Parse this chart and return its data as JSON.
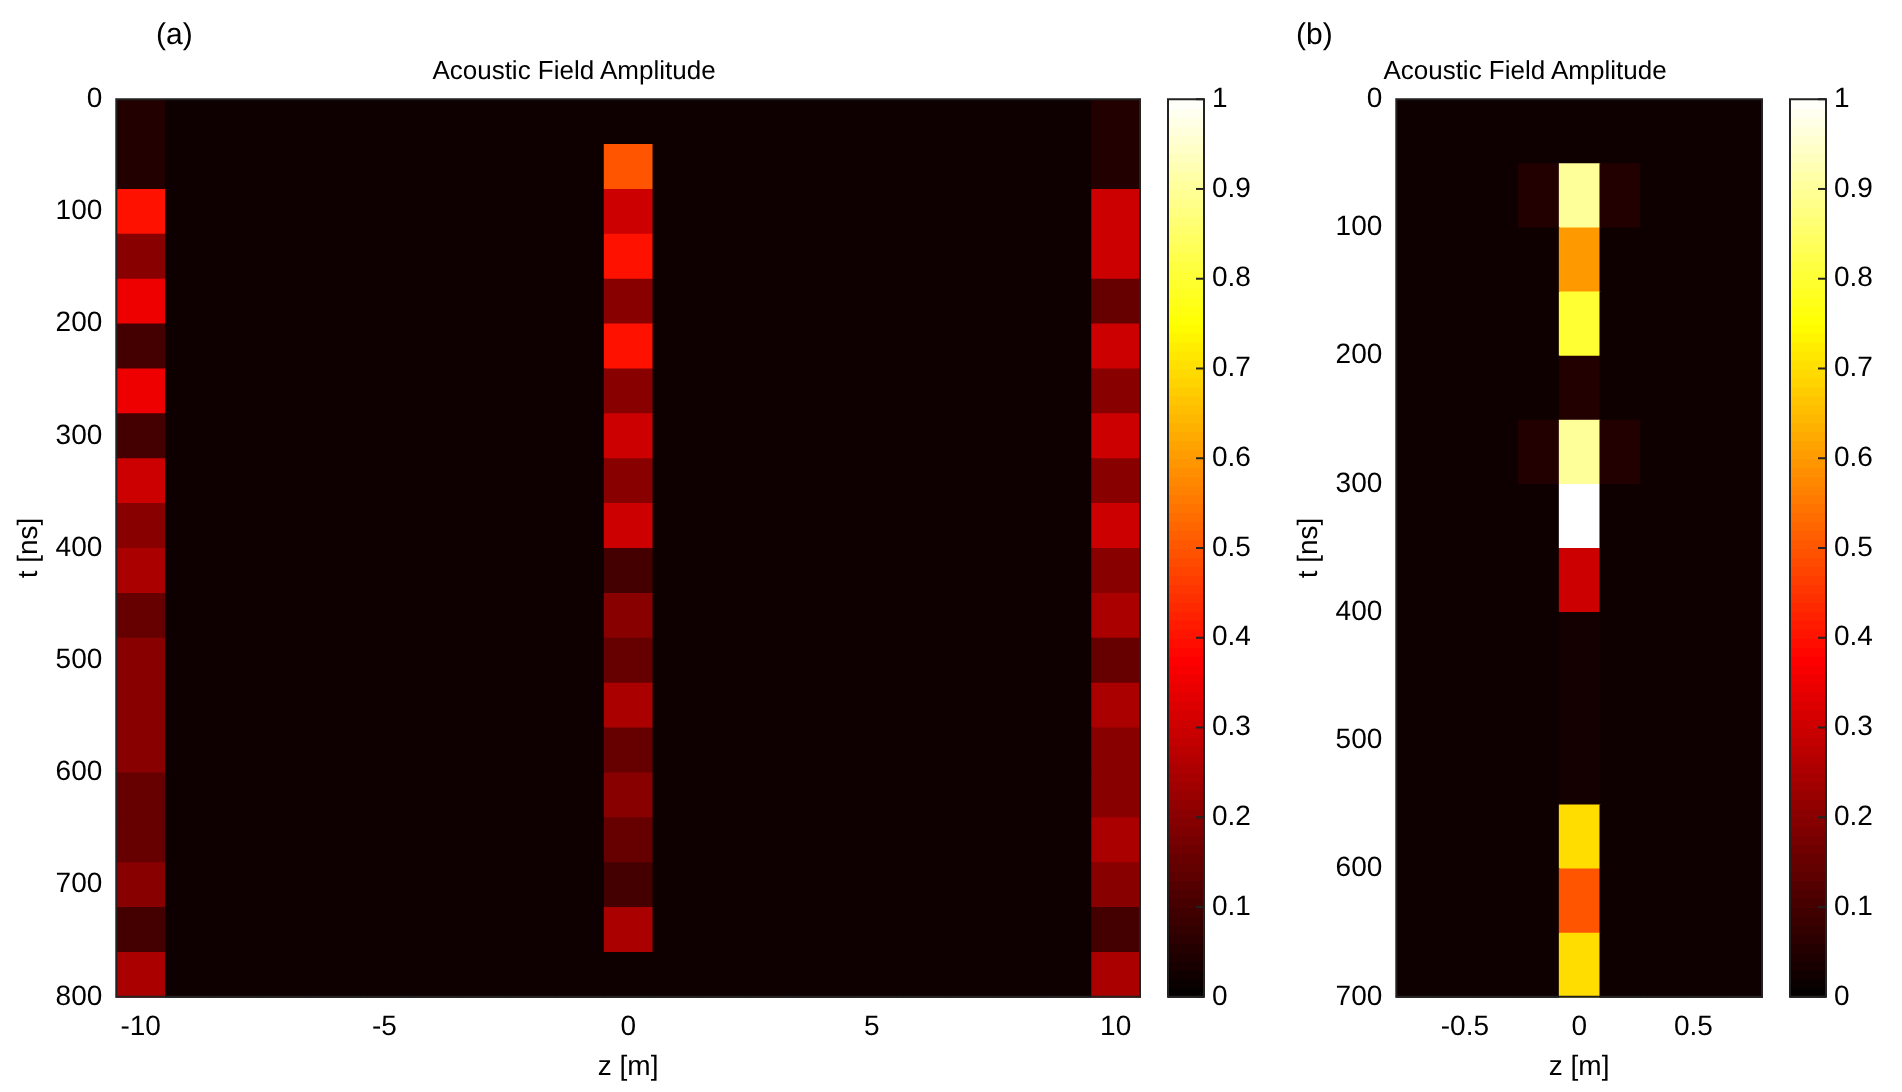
{
  "chart_data": [
    {
      "type": "heatmap",
      "title": "Acoustic Field Amplitude",
      "xlabel": "z [m]",
      "ylabel": "t [ns]",
      "annotations": [
        "(a)"
      ],
      "xlim": [
        -10.5,
        10.5
      ],
      "xticks": [
        -10,
        -5,
        0,
        5,
        10
      ],
      "ylim": [
        800,
        0
      ],
      "yticks": [
        0,
        100,
        200,
        300,
        400,
        500,
        600,
        700,
        800
      ],
      "clim": [
        0,
        1
      ],
      "cticks": [
        0,
        0.1,
        0.2,
        0.3,
        0.4,
        0.5,
        0.6,
        0.7,
        0.8,
        0.9,
        1
      ],
      "cells": [
        [
          0.05,
          0.02,
          0.02,
          0.02,
          0.02,
          0.02,
          0.02,
          0.02,
          0.02,
          0.02,
          0.02,
          0.02,
          0.02,
          0.02,
          0.02,
          0.02,
          0.02,
          0.02,
          0.02,
          0.02,
          0.05
        ],
        [
          0.05,
          0.02,
          0.02,
          0.02,
          0.02,
          0.02,
          0.02,
          0.02,
          0.02,
          0.02,
          0.5,
          0.02,
          0.02,
          0.02,
          0.02,
          0.02,
          0.02,
          0.02,
          0.02,
          0.02,
          0.05
        ],
        [
          0.4,
          0.02,
          0.02,
          0.02,
          0.02,
          0.02,
          0.02,
          0.02,
          0.02,
          0.02,
          0.3,
          0.02,
          0.02,
          0.02,
          0.02,
          0.02,
          0.02,
          0.02,
          0.02,
          0.02,
          0.3
        ],
        [
          0.2,
          0.02,
          0.02,
          0.02,
          0.02,
          0.02,
          0.02,
          0.02,
          0.02,
          0.02,
          0.4,
          0.02,
          0.02,
          0.02,
          0.02,
          0.02,
          0.02,
          0.02,
          0.02,
          0.02,
          0.3
        ],
        [
          0.35,
          0.02,
          0.02,
          0.02,
          0.02,
          0.02,
          0.02,
          0.02,
          0.02,
          0.02,
          0.2,
          0.02,
          0.02,
          0.02,
          0.02,
          0.02,
          0.02,
          0.02,
          0.02,
          0.02,
          0.15
        ],
        [
          0.1,
          0.02,
          0.02,
          0.02,
          0.02,
          0.02,
          0.02,
          0.02,
          0.02,
          0.02,
          0.4,
          0.02,
          0.02,
          0.02,
          0.02,
          0.02,
          0.02,
          0.02,
          0.02,
          0.02,
          0.3
        ],
        [
          0.35,
          0.02,
          0.02,
          0.02,
          0.02,
          0.02,
          0.02,
          0.02,
          0.02,
          0.02,
          0.2,
          0.02,
          0.02,
          0.02,
          0.02,
          0.02,
          0.02,
          0.02,
          0.02,
          0.02,
          0.2
        ],
        [
          0.1,
          0.02,
          0.02,
          0.02,
          0.02,
          0.02,
          0.02,
          0.02,
          0.02,
          0.02,
          0.3,
          0.02,
          0.02,
          0.02,
          0.02,
          0.02,
          0.02,
          0.02,
          0.02,
          0.02,
          0.3
        ],
        [
          0.3,
          0.02,
          0.02,
          0.02,
          0.02,
          0.02,
          0.02,
          0.02,
          0.02,
          0.02,
          0.2,
          0.02,
          0.02,
          0.02,
          0.02,
          0.02,
          0.02,
          0.02,
          0.02,
          0.02,
          0.2
        ],
        [
          0.2,
          0.02,
          0.02,
          0.02,
          0.02,
          0.02,
          0.02,
          0.02,
          0.02,
          0.02,
          0.3,
          0.02,
          0.02,
          0.02,
          0.02,
          0.02,
          0.02,
          0.02,
          0.02,
          0.02,
          0.3
        ],
        [
          0.25,
          0.02,
          0.02,
          0.02,
          0.02,
          0.02,
          0.02,
          0.02,
          0.02,
          0.02,
          0.1,
          0.02,
          0.02,
          0.02,
          0.02,
          0.02,
          0.02,
          0.02,
          0.02,
          0.02,
          0.2
        ],
        [
          0.15,
          0.02,
          0.02,
          0.02,
          0.02,
          0.02,
          0.02,
          0.02,
          0.02,
          0.02,
          0.2,
          0.02,
          0.02,
          0.02,
          0.02,
          0.02,
          0.02,
          0.02,
          0.02,
          0.02,
          0.25
        ],
        [
          0.2,
          0.02,
          0.02,
          0.02,
          0.02,
          0.02,
          0.02,
          0.02,
          0.02,
          0.02,
          0.15,
          0.02,
          0.02,
          0.02,
          0.02,
          0.02,
          0.02,
          0.02,
          0.02,
          0.02,
          0.15
        ],
        [
          0.2,
          0.02,
          0.02,
          0.02,
          0.02,
          0.02,
          0.02,
          0.02,
          0.02,
          0.02,
          0.25,
          0.02,
          0.02,
          0.02,
          0.02,
          0.02,
          0.02,
          0.02,
          0.02,
          0.02,
          0.25
        ],
        [
          0.2,
          0.02,
          0.02,
          0.02,
          0.02,
          0.02,
          0.02,
          0.02,
          0.02,
          0.02,
          0.15,
          0.02,
          0.02,
          0.02,
          0.02,
          0.02,
          0.02,
          0.02,
          0.02,
          0.02,
          0.2
        ],
        [
          0.15,
          0.02,
          0.02,
          0.02,
          0.02,
          0.02,
          0.02,
          0.02,
          0.02,
          0.02,
          0.2,
          0.02,
          0.02,
          0.02,
          0.02,
          0.02,
          0.02,
          0.02,
          0.02,
          0.02,
          0.2
        ],
        [
          0.15,
          0.02,
          0.02,
          0.02,
          0.02,
          0.02,
          0.02,
          0.02,
          0.02,
          0.02,
          0.15,
          0.02,
          0.02,
          0.02,
          0.02,
          0.02,
          0.02,
          0.02,
          0.02,
          0.02,
          0.25
        ],
        [
          0.2,
          0.02,
          0.02,
          0.02,
          0.02,
          0.02,
          0.02,
          0.02,
          0.02,
          0.02,
          0.1,
          0.02,
          0.02,
          0.02,
          0.02,
          0.02,
          0.02,
          0.02,
          0.02,
          0.02,
          0.2
        ],
        [
          0.1,
          0.02,
          0.02,
          0.02,
          0.02,
          0.02,
          0.02,
          0.02,
          0.02,
          0.02,
          0.25,
          0.02,
          0.02,
          0.02,
          0.02,
          0.02,
          0.02,
          0.02,
          0.02,
          0.02,
          0.1
        ],
        [
          0.25,
          0.02,
          0.02,
          0.02,
          0.02,
          0.02,
          0.02,
          0.02,
          0.02,
          0.02,
          0.02,
          0.02,
          0.02,
          0.02,
          0.02,
          0.02,
          0.02,
          0.02,
          0.02,
          0.02,
          0.25
        ]
      ]
    },
    {
      "type": "heatmap",
      "title": "Acoustic Field Amplitude",
      "xlabel": "z [m]",
      "ylabel": "t [ns]",
      "annotations": [
        "(b)"
      ],
      "xlim": [
        -0.8,
        0.8
      ],
      "xticks": [
        -0.5,
        0,
        0.5
      ],
      "ylim": [
        700,
        0
      ],
      "yticks": [
        0,
        100,
        200,
        300,
        400,
        500,
        600,
        700
      ],
      "clim": [
        0,
        1
      ],
      "cticks": [
        0,
        0.1,
        0.2,
        0.3,
        0.4,
        0.5,
        0.6,
        0.7,
        0.8,
        0.9,
        1
      ],
      "cells": [
        [
          0.02,
          0.02,
          0.02,
          0.02,
          0.02,
          0.02,
          0.02,
          0.02,
          0.02
        ],
        [
          0.02,
          0.02,
          0.02,
          0.05,
          0.9,
          0.05,
          0.02,
          0.02,
          0.02
        ],
        [
          0.02,
          0.02,
          0.02,
          0.02,
          0.6,
          0.02,
          0.02,
          0.02,
          0.02
        ],
        [
          0.02,
          0.02,
          0.02,
          0.02,
          0.8,
          0.02,
          0.02,
          0.02,
          0.02
        ],
        [
          0.02,
          0.02,
          0.02,
          0.02,
          0.05,
          0.02,
          0.02,
          0.02,
          0.02
        ],
        [
          0.02,
          0.02,
          0.02,
          0.05,
          0.9,
          0.05,
          0.02,
          0.02,
          0.02
        ],
        [
          0.02,
          0.02,
          0.02,
          0.02,
          1,
          0.02,
          0.02,
          0.02,
          0.02
        ],
        [
          0.02,
          0.02,
          0.02,
          0.02,
          0.3,
          0.02,
          0.02,
          0.02,
          0.02
        ],
        [
          0.02,
          0.02,
          0.02,
          0.02,
          0.03,
          0.02,
          0.02,
          0.02,
          0.02
        ],
        [
          0.02,
          0.02,
          0.02,
          0.02,
          0.03,
          0.02,
          0.02,
          0.02,
          0.02
        ],
        [
          0.02,
          0.02,
          0.02,
          0.02,
          0.03,
          0.02,
          0.02,
          0.02,
          0.02
        ],
        [
          0.02,
          0.02,
          0.02,
          0.02,
          0.7,
          0.02,
          0.02,
          0.02,
          0.02
        ],
        [
          0.02,
          0.02,
          0.02,
          0.02,
          0.5,
          0.02,
          0.02,
          0.02,
          0.02
        ],
        [
          0.02,
          0.02,
          0.02,
          0.02,
          0.7,
          0.02,
          0.02,
          0.02,
          0.02
        ]
      ]
    }
  ]
}
